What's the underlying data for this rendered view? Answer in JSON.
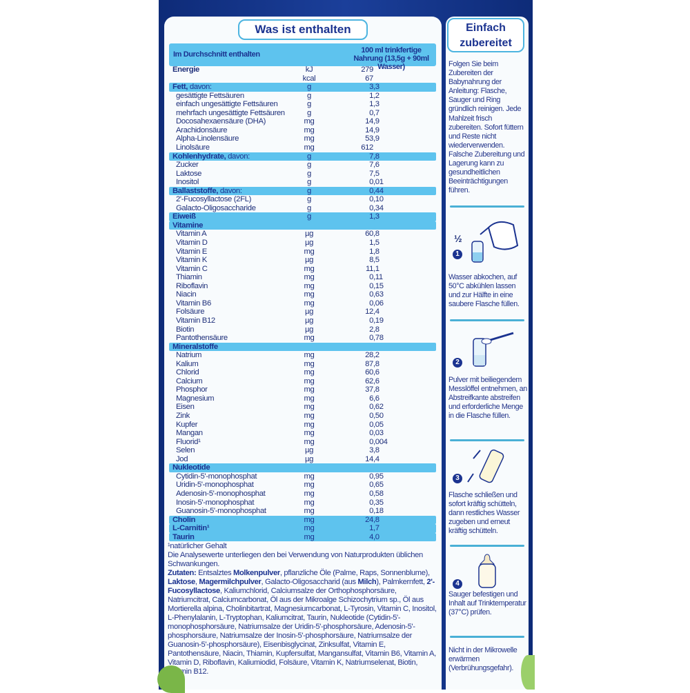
{
  "left_panel": {
    "title": "Was ist enthalten",
    "header": {
      "col1": "Im Durchschnitt enthalten",
      "col2_line1": "100 ml trinkfertige",
      "col2_line2": "Nahrung (13,5g + 90ml Wasser)"
    },
    "rows": [
      {
        "name": "Energie",
        "bold": "Energie",
        "unit": "kJ",
        "value": "279",
        "type": "top"
      },
      {
        "name": "",
        "unit": "kcal",
        "value": "67",
        "type": "top"
      },
      {
        "name": "Fett, davon:",
        "bold": "Fett,",
        "rest": " davon:",
        "unit": "g",
        "value": "3,3",
        "type": "hl"
      },
      {
        "name": "gesättigte Fettsäuren",
        "unit": "g",
        "value": "1,2"
      },
      {
        "name": "einfach ungesättigte Fettsäuren",
        "unit": "g",
        "value": "1,3"
      },
      {
        "name": "mehrfach ungesättigte Fettsäuren",
        "unit": "g",
        "value": "0,7"
      },
      {
        "name": "Docosahexaensäure (DHA)",
        "unit": "mg",
        "value": "14,9"
      },
      {
        "name": "Arachidonsäure",
        "unit": "mg",
        "value": "14,9"
      },
      {
        "name": "Alpha-Linolensäure",
        "unit": "mg",
        "value": "53,9"
      },
      {
        "name": "Linolsäure",
        "unit": "mg",
        "value": "612"
      },
      {
        "name": "Kohlenhydrate, davon:",
        "bold": "Kohlenhydrate,",
        "rest": " davon:",
        "unit": "g",
        "value": "7,8",
        "type": "hl"
      },
      {
        "name": "Zucker",
        "unit": "g",
        "value": "7,6"
      },
      {
        "name": "Laktose",
        "unit": "g",
        "value": "7,5"
      },
      {
        "name": "Inositol",
        "unit": "g",
        "value": "0,01"
      },
      {
        "name": "Ballaststoffe, davon:",
        "bold": "Ballaststoffe,",
        "rest": " davon:",
        "unit": "g",
        "value": "0,44",
        "type": "hl"
      },
      {
        "name": "2'-Fucosyllactose (2FL)",
        "unit": "g",
        "value": "0,10"
      },
      {
        "name": "Galacto-Oligosaccharide",
        "unit": "g",
        "value": "0,34"
      },
      {
        "name": "Eiweiß",
        "bold": "Eiweiß",
        "unit": "g",
        "value": "1,3",
        "type": "hl"
      },
      {
        "name": "Vitamine",
        "bold": "Vitamine",
        "unit": "",
        "value": "",
        "type": "hl"
      },
      {
        "name": "Vitamin A",
        "unit": "µg",
        "value": "60,8"
      },
      {
        "name": "Vitamin D",
        "unit": "µg",
        "value": "1,5"
      },
      {
        "name": "Vitamin E",
        "unit": "mg",
        "value": "1,8"
      },
      {
        "name": "Vitamin K",
        "unit": "µg",
        "value": "8,5"
      },
      {
        "name": "Vitamin C",
        "unit": "mg",
        "value": "11,1"
      },
      {
        "name": "Thiamin",
        "unit": "mg",
        "value": "0,11"
      },
      {
        "name": "Riboflavin",
        "unit": "mg",
        "value": "0,15"
      },
      {
        "name": "Niacin",
        "unit": "mg",
        "value": "0,63"
      },
      {
        "name": "Vitamin B6",
        "unit": "mg",
        "value": "0,06"
      },
      {
        "name": "Folsäure",
        "unit": "µg",
        "value": "12,4"
      },
      {
        "name": "Vitamin B12",
        "unit": "µg",
        "value": "0,19"
      },
      {
        "name": "Biotin",
        "unit": "µg",
        "value": "2,8"
      },
      {
        "name": "Pantothensäure",
        "unit": "mg",
        "value": "0,78"
      },
      {
        "name": "Mineralstoffe",
        "bold": "Mineralstoffe",
        "unit": "",
        "value": "",
        "type": "hl"
      },
      {
        "name": "Natrium",
        "unit": "mg",
        "value": "28,2"
      },
      {
        "name": "Kalium",
        "unit": "mg",
        "value": "87,8"
      },
      {
        "name": "Chlorid",
        "unit": "mg",
        "value": "60,6"
      },
      {
        "name": "Calcium",
        "unit": "mg",
        "value": "62,6"
      },
      {
        "name": "Phosphor",
        "unit": "mg",
        "value": "37,8"
      },
      {
        "name": "Magnesium",
        "unit": "mg",
        "value": "6,6"
      },
      {
        "name": "Eisen",
        "unit": "mg",
        "value": "0,62"
      },
      {
        "name": "Zink",
        "unit": "mg",
        "value": "0,50"
      },
      {
        "name": "Kupfer",
        "unit": "mg",
        "value": "0,05"
      },
      {
        "name": "Mangan",
        "unit": "mg",
        "value": "0,03"
      },
      {
        "name": "Fluorid¹",
        "unit": "mg",
        "value": "0,004"
      },
      {
        "name": "Selen",
        "unit": "µg",
        "value": "3,8"
      },
      {
        "name": "Jod",
        "unit": "µg",
        "value": "14,4"
      },
      {
        "name": "Nukleotide",
        "bold": "Nukleotide",
        "unit": "",
        "value": "",
        "type": "hl"
      },
      {
        "name": "Cytidin-5'-monophosphat",
        "unit": "mg",
        "value": "0,95"
      },
      {
        "name": "Uridin-5'-monophosphat",
        "unit": "mg",
        "value": "0,65"
      },
      {
        "name": "Adenosin-5'-monophosphat",
        "unit": "mg",
        "value": "0,58"
      },
      {
        "name": "Inosin-5'-monophosphat",
        "unit": "mg",
        "value": "0,35"
      },
      {
        "name": "Guanosin-5'-monophosphat",
        "unit": "mg",
        "value": "0,18"
      },
      {
        "name": "Cholin",
        "bold": "Cholin",
        "unit": "mg",
        "value": "24,8",
        "type": "hl"
      },
      {
        "name": "L-Carnitin¹",
        "bold": "L-Carnitin¹",
        "unit": "mg",
        "value": "1,7",
        "type": "hl"
      },
      {
        "name": "Taurin",
        "bold": "Taurin",
        "unit": "mg",
        "value": "4,0",
        "type": "hl"
      }
    ],
    "footnote": "¹natürlicher Gehalt",
    "note": "Die Analysewerte unterliegen den bei Verwendung von Naturprodukten üblichen Schwankungen.",
    "ingredients_label": "Zutaten:",
    "ingredients": [
      {
        "t": " Entsalztes "
      },
      {
        "b": "Molkenpulver"
      },
      {
        "t": ", pflanzliche Öle (Palme, Raps, Sonnenblume), "
      },
      {
        "b": "Laktose"
      },
      {
        "t": ", "
      },
      {
        "b": "Magermilchpulver"
      },
      {
        "t": ", Galacto-Oligosaccharid (aus "
      },
      {
        "b": "Milch"
      },
      {
        "t": "), Palmkernfett, "
      },
      {
        "b": "2'-Fucosyllactose"
      },
      {
        "t": ", Kaliumchlorid, Calciumsalze der Orthophosphorsäure, Natriumcitrat, Calciumcarbonat, Öl aus der Mikroalge Schizochytrium sp., Öl aus Mortierella alpina, Cholinbitartrat, Magnesiumcarbonat, L-Tyrosin, Vitamin C, Inositol, L-Phenylalanin, L-Tryptophan, Kaliumcitrat, Taurin, Nukleotide (Cytidin-5'-monophosphorsäure, Natriumsalze der Uridin-5'-phosphorsäure, Adenosin-5'-phosphorsäure, Natriumsalze der Inosin-5'-phosphorsäure, Natriumsalze der Guanosin-5'-phosphorsäure), Eisenbisglycinat, Zinksulfat, Vitamin E, Pantothensäure, Niacin, Thiamin, Kupfersulfat, Mangansulfat, Vitamin B6, Vitamin A, Vitamin D, Riboflavin, Kaliumiodid, Folsäure, Vitamin K, Natriumselenat, Biotin, Vitamin B12."
      }
    ]
  },
  "right_panel": {
    "title_line1": "Einfach",
    "title_line2": "zubereitet",
    "intro": "Folgen Sie beim Zubereiten der Babynahrung der Anleitung: Flasche, Sauger und Ring gründlich reinigen. Jede Mahlzeit frisch zubereiten. Sofort füttern und Reste nicht wiederverwenden. Falsche Zubereitung und Lagerung kann zu gesundheitlichen Beeinträchtigungen führen.",
    "steps": [
      {
        "number": "1",
        "fraction": "½",
        "icon": "kettle-bottle-icon",
        "text": "Wasser abkochen, auf 50°C abkühlen lassen und zur Hälfte in eine saubere Flasche füllen."
      },
      {
        "number": "2",
        "icon": "scoop-bottle-icon",
        "text": "Pulver mit beiliegendem Messlöffel entnehmen, an Abstreifkante abstreifen und erforderliche Menge in die Flasche füllen."
      },
      {
        "number": "3",
        "icon": "shake-bottle-icon",
        "text": "Flasche schließen und sofort kräftig schütteln, dann restliches Wasser zugeben und erneut kräftig schütteln."
      },
      {
        "number": "4",
        "icon": "baby-bottle-icon",
        "text": "Sauger befestigen und Inhalt auf Trinktemperatur (37°C) prüfen."
      }
    ],
    "warning": "Nicht in der Mikrowelle erwärmen (Verbrühungsgefahr)."
  },
  "colors": {
    "package_blue": "#1b3f9a",
    "highlight": "#5ec3ee",
    "text": "#1e2f7a"
  }
}
